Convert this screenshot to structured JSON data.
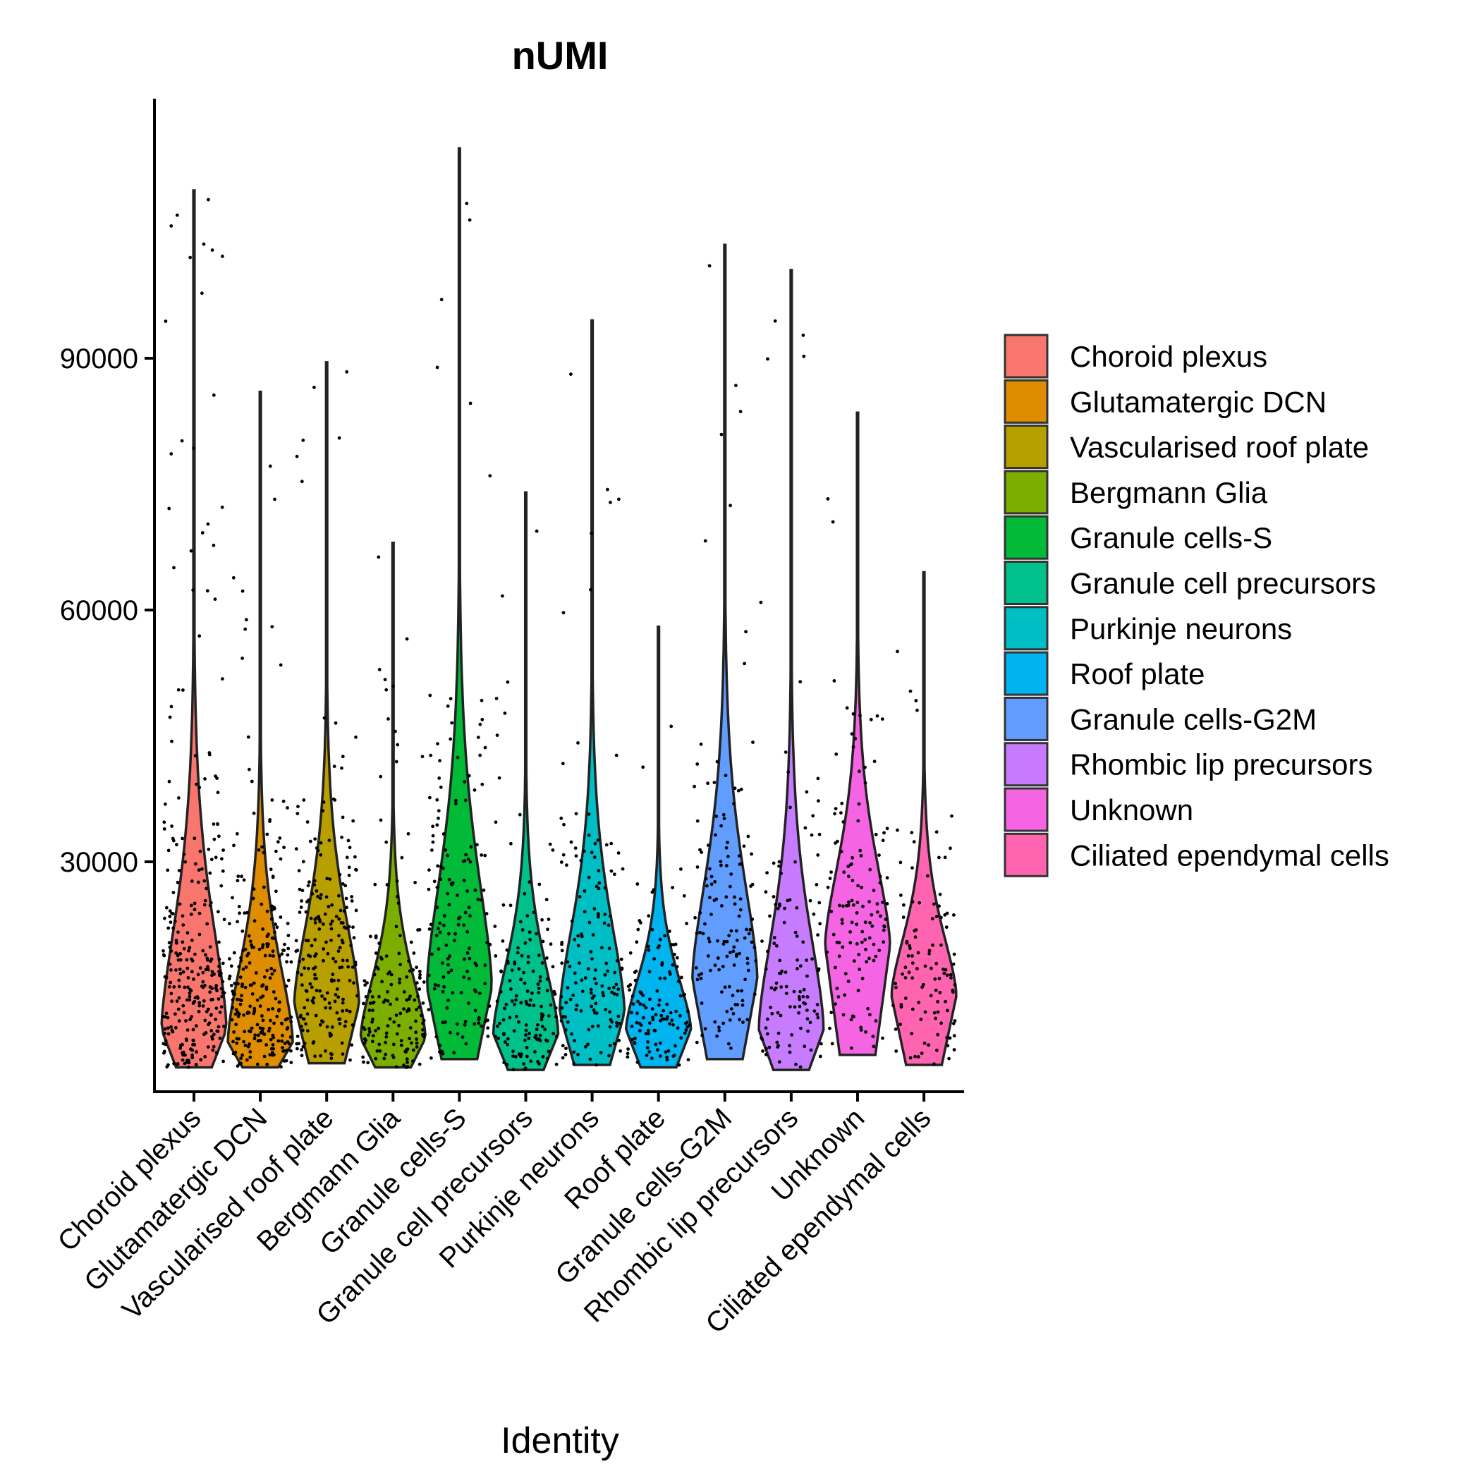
{
  "chart_data": {
    "type": "violin",
    "title": "nUMI",
    "xlabel": "Identity",
    "ylabel": "",
    "ylim": [
      4000,
      119000
    ],
    "yticks": [
      30000,
      60000,
      90000
    ],
    "yticklabels": [
      "30000",
      "60000",
      "90000"
    ],
    "grid": false,
    "legend_position": "right",
    "categories": [
      "Choroid plexus",
      "Glutamatergic DCN",
      "Vascularised roof plate",
      "Bergmann Glia",
      "Granule cells-S",
      "Granule cell precursors",
      "Purkinje neurons",
      "Roof plate",
      "Granule cells-G2M",
      "Rhombic lip precursors",
      "Unknown",
      "Ciliated ependymal cells"
    ],
    "colors": [
      "#F8766D",
      "#DE8C00",
      "#B79F00",
      "#7CAE00",
      "#00BA38",
      "#00C08B",
      "#00BFC4",
      "#00B4F0",
      "#619CFF",
      "#C77CFF",
      "#F564E3",
      "#FF64B0"
    ],
    "series": [
      {
        "name": "Choroid plexus",
        "min": 5500,
        "max": 110000,
        "mode": 10000,
        "n_points": 300
      },
      {
        "name": "Glutamatergic DCN",
        "min": 5500,
        "max": 86000,
        "mode": 8500,
        "n_points": 250
      },
      {
        "name": "Vascularised roof plate",
        "min": 6000,
        "max": 89500,
        "mode": 13000,
        "n_points": 220
      },
      {
        "name": "Bergmann Glia",
        "min": 5500,
        "max": 68000,
        "mode": 9000,
        "n_points": 160
      },
      {
        "name": "Granule cells-S",
        "min": 6500,
        "max": 115000,
        "mode": 15000,
        "n_points": 160
      },
      {
        "name": "Granule cell precursors",
        "min": 5200,
        "max": 74000,
        "mode": 9500,
        "n_points": 150
      },
      {
        "name": "Purkinje neurons",
        "min": 5800,
        "max": 94500,
        "mode": 12000,
        "n_points": 150
      },
      {
        "name": "Roof plate",
        "min": 5500,
        "max": 58000,
        "mode": 10000,
        "n_points": 130
      },
      {
        "name": "Granule cells-G2M",
        "min": 6500,
        "max": 103500,
        "mode": 16000,
        "n_points": 140
      },
      {
        "name": "Rhombic lip precursors",
        "min": 5200,
        "max": 100500,
        "mode": 10000,
        "n_points": 120
      },
      {
        "name": "Unknown",
        "min": 7000,
        "max": 83500,
        "mode": 20000,
        "n_points": 130
      },
      {
        "name": "Ciliated ependymal cells",
        "min": 5800,
        "max": 64500,
        "mode": 14000,
        "n_points": 110
      }
    ]
  }
}
